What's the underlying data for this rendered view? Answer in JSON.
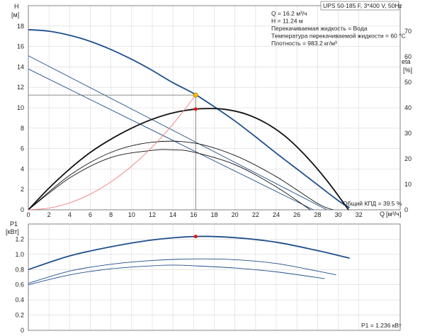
{
  "chart_data": [
    {
      "type": "line",
      "panel": "pump-performance",
      "title": "UPS 50-185 F, 3*400 V, 50Hz",
      "ylabel": "H",
      "yunit": "[м]",
      "y2label": "eta",
      "y2unit": "[%]",
      "xlabel": "Q",
      "xunit": "[м³/ч]",
      "xlim": [
        0,
        36
      ],
      "ylim": [
        0,
        20
      ],
      "y2lim": [
        0,
        80
      ],
      "grid": true,
      "xticks": [
        "0",
        "2",
        "4",
        "6",
        "8",
        "10",
        "12",
        "14",
        "16",
        "18",
        "20",
        "22",
        "24",
        "26",
        "28",
        "30",
        "32"
      ],
      "yticks": [
        "0",
        "2",
        "4",
        "6",
        "8",
        "10",
        "12",
        "14",
        "16",
        "18"
      ],
      "y2ticks": [
        "0",
        "10",
        "20",
        "30",
        "40",
        "50",
        "60",
        "70"
      ],
      "info": [
        "Q = 16.2 м³/ч",
        "H = 11.24 м",
        "Перекачиваемая жидкость = Вода",
        "Температура перекачиваемой жидкости = 60 °C",
        "Плотность = 983.2 кг/м³"
      ],
      "efficiency_label": "Общий КПД = 39.5 %",
      "operating_point": {
        "q": 16.2,
        "h": 11.24
      },
      "efficiency_point": {
        "q": 16.2,
        "eta": 39.5
      },
      "series": [
        {
          "role": "head-max",
          "color": "#1f4e8c",
          "axis": "left",
          "width": 1.8,
          "x": [
            0,
            2,
            4,
            6,
            8,
            10,
            12,
            14,
            16,
            18,
            20,
            22,
            24,
            26,
            28,
            30,
            31.1
          ],
          "y": [
            17.65,
            17.5,
            17.1,
            16.5,
            15.7,
            14.75,
            13.65,
            12.45,
            11.4,
            10.1,
            8.7,
            7.15,
            5.55,
            4.0,
            2.45,
            0.9,
            0.2
          ]
        },
        {
          "role": "head-mid",
          "color": "#1f4e8c",
          "axis": "left",
          "width": 0.9,
          "x": [
            0,
            28.9
          ],
          "y": [
            15.1,
            0
          ]
        },
        {
          "role": "head-min",
          "color": "#1f4e8c",
          "axis": "left",
          "width": 0.9,
          "x": [
            0,
            27.6
          ],
          "y": [
            13.8,
            0
          ]
        },
        {
          "role": "eta-max",
          "color": "#111111",
          "axis": "right",
          "width": 1.8,
          "x": [
            0,
            2,
            4,
            6,
            8,
            10,
            12,
            14,
            16,
            17.5,
            19,
            21,
            23,
            25,
            27,
            29,
            31
          ],
          "y": [
            0,
            8.5,
            16,
            22.5,
            27.7,
            32,
            35.5,
            38,
            39.4,
            39.7,
            39.4,
            37.6,
            34,
            28.4,
            20.5,
            11,
            0
          ]
        },
        {
          "role": "eta-mid",
          "color": "#111111",
          "axis": "right",
          "width": 0.9,
          "x": [
            0,
            4,
            8,
            12,
            16,
            20,
            24,
            28,
            29.5
          ],
          "y": [
            0,
            13.5,
            22.5,
            26.5,
            26.2,
            21.3,
            13,
            2.5,
            0
          ]
        },
        {
          "role": "eta-min",
          "color": "#111111",
          "axis": "right",
          "width": 0.9,
          "x": [
            0,
            4,
            8,
            12,
            14,
            16,
            20,
            24,
            27.3
          ],
          "y": [
            0,
            12.5,
            20.5,
            23.3,
            23.5,
            22.6,
            17.7,
            9,
            0
          ]
        },
        {
          "role": "system-curve",
          "color": "#f08080",
          "axis": "left",
          "width": 0.9,
          "x": [
            0,
            2,
            4,
            6,
            8,
            10,
            12,
            14,
            16.2
          ],
          "y": [
            0,
            0.17,
            0.68,
            1.54,
            2.74,
            4.28,
            6.16,
            8.39,
            11.24
          ]
        }
      ]
    },
    {
      "type": "line",
      "panel": "power-consumption",
      "ylabel": "P1",
      "yunit": "[кВт]",
      "xlim": [
        0,
        36
      ],
      "ylim": [
        0,
        1.4
      ],
      "yticks": [
        "0",
        "0.2",
        "0.4",
        "0.6",
        "0.8",
        "1.0",
        "1.2"
      ],
      "grid": true,
      "power_label": "P1 = 1.236 кВт",
      "power_point": {
        "q": 16.2,
        "p1": 1.236
      },
      "series": [
        {
          "role": "p1-max",
          "color": "#1f4e8c",
          "width": 1.8,
          "x": [
            0,
            4,
            8,
            12,
            16.2,
            20,
            24,
            28,
            31.1
          ],
          "y": [
            0.8,
            0.98,
            1.1,
            1.19,
            1.236,
            1.22,
            1.16,
            1.05,
            0.95
          ]
        },
        {
          "role": "p1-mid",
          "color": "#1f4e8c",
          "width": 0.9,
          "x": [
            0,
            4,
            8,
            12,
            16,
            20,
            24,
            28,
            29.8
          ],
          "y": [
            0.62,
            0.78,
            0.87,
            0.92,
            0.94,
            0.93,
            0.88,
            0.78,
            0.73
          ]
        },
        {
          "role": "p1-min",
          "color": "#1f4e8c",
          "width": 0.9,
          "x": [
            0,
            4,
            8,
            12,
            14,
            16,
            20,
            24,
            28.7
          ],
          "y": [
            0.6,
            0.73,
            0.81,
            0.85,
            0.86,
            0.85,
            0.82,
            0.77,
            0.68
          ]
        }
      ]
    }
  ]
}
